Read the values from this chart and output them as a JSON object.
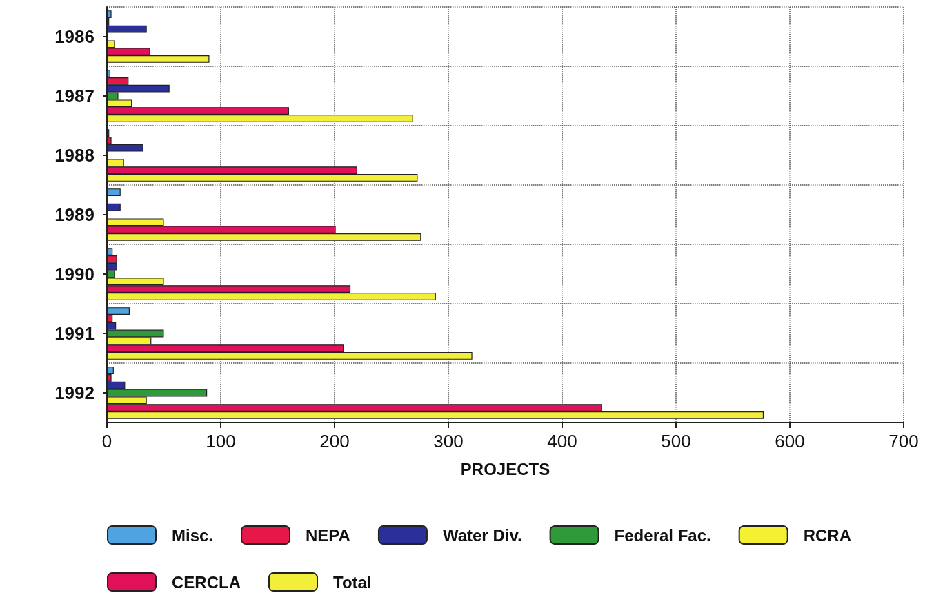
{
  "chart_data": {
    "type": "bar",
    "orientation": "horizontal",
    "xlabel": "PROJECTS",
    "categories": [
      "1986",
      "1987",
      "1988",
      "1989",
      "1990",
      "1991",
      "1992"
    ],
    "series": [
      {
        "name": "Misc.",
        "color": "#4fa3e0",
        "values": [
          4,
          3,
          2,
          12,
          5,
          20,
          6
        ]
      },
      {
        "name": "NEPA",
        "color": "#e8174a",
        "values": [
          2,
          19,
          4,
          null,
          9,
          5,
          4
        ]
      },
      {
        "name": "Water Div.",
        "color": "#2a2f9a",
        "values": [
          35,
          55,
          32,
          12,
          9,
          8,
          16
        ]
      },
      {
        "name": "Federal Fac.",
        "color": "#2e9a3a",
        "values": [
          1,
          10,
          null,
          null,
          7,
          50,
          88
        ]
      },
      {
        "name": "RCRA",
        "color": "#f5f032",
        "values": [
          7,
          22,
          15,
          50,
          50,
          39,
          35
        ]
      },
      {
        "name": "CERCLA",
        "color": "#e0105a",
        "values": [
          38,
          160,
          220,
          201,
          214,
          208,
          435
        ]
      },
      {
        "name": "Total",
        "color": "#f2ee3a",
        "values": [
          90,
          269,
          273,
          276,
          289,
          321,
          577
        ]
      }
    ],
    "xlim": [
      0,
      700
    ],
    "xticks": [
      0,
      100,
      200,
      300,
      400,
      500,
      600,
      700
    ],
    "grid": true,
    "legend": "bottom"
  }
}
